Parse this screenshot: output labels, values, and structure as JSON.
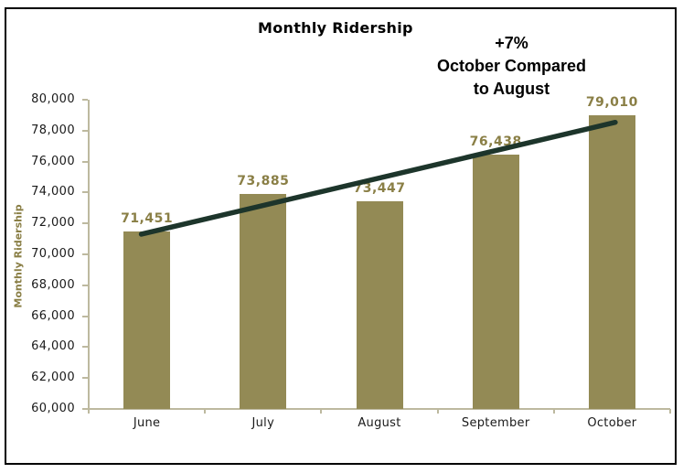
{
  "chart_data": {
    "type": "bar",
    "title": "Monthly Ridership",
    "ylabel": "Monthly Ridership",
    "xlabel": "",
    "categories": [
      "June",
      "July",
      "August",
      "September",
      "October"
    ],
    "values": [
      71451,
      73885,
      73447,
      76438,
      79010
    ],
    "values_formatted": [
      "71,451",
      "73,885",
      "73,447",
      "76,438",
      "79,010"
    ],
    "ylim": [
      60000,
      80000
    ],
    "ytick_step": 2000,
    "ytick_labels": [
      "60,000",
      "62,000",
      "64,000",
      "66,000",
      "68,000",
      "70,000",
      "72,000",
      "74,000",
      "76,000",
      "78,000",
      "80,000"
    ],
    "grid": false,
    "legend": "none",
    "trendline": {
      "description": "straight rising trend line from June bar top to October bar top",
      "from_category": "June",
      "to_category": "October"
    }
  },
  "annotation": {
    "line1": "+7%",
    "line2": "October Compared",
    "line3": "to August"
  },
  "colors": {
    "bar": "#938a55",
    "data_label": "#8a7f46",
    "axis": "#bdb99f",
    "text": "#1a1a1a",
    "trend": "#1d352b",
    "frame_border": "#000000",
    "background": "#ffffff"
  }
}
